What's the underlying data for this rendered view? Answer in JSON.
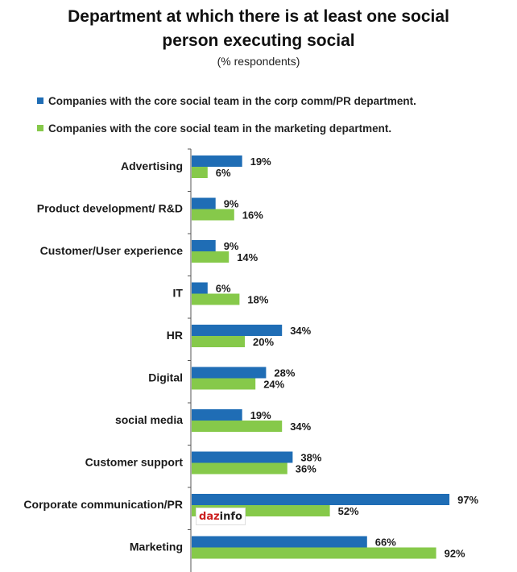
{
  "chart_data": {
    "type": "bar",
    "orientation": "horizontal",
    "title_line1": "Department at which there is at least one social",
    "title_line2": "person executing social",
    "subtitle": "(% respondents)",
    "categories": [
      "Advertising",
      "Product development/ R&D",
      "Customer/User experience",
      "IT",
      "HR",
      "Digital",
      "social media",
      "Customer support",
      "Corporate communication/PR",
      "Marketing"
    ],
    "series": [
      {
        "name": "Companies with the core social team in the corp comm/PR department.",
        "color": "#1f6db5",
        "values": [
          19,
          9,
          9,
          6,
          34,
          28,
          19,
          38,
          97,
          66
        ],
        "labels": [
          "19%",
          "9%",
          "9%",
          "6%",
          "34%",
          "28%",
          "19%",
          "38%",
          "97%",
          "66%"
        ]
      },
      {
        "name": "Companies with the core social team in the marketing department.",
        "color": "#86c94a",
        "values": [
          6,
          16,
          14,
          18,
          20,
          24,
          34,
          36,
          52,
          92
        ],
        "labels": [
          "6%",
          "16%",
          "14%",
          "18%",
          "20%",
          "24%",
          "34%",
          "36%",
          "52%",
          "92%"
        ]
      }
    ],
    "xlim": [
      0,
      100
    ],
    "grid": false,
    "legend_position": "top-left"
  },
  "watermark": {
    "part1": "daz",
    "part2": "info"
  }
}
